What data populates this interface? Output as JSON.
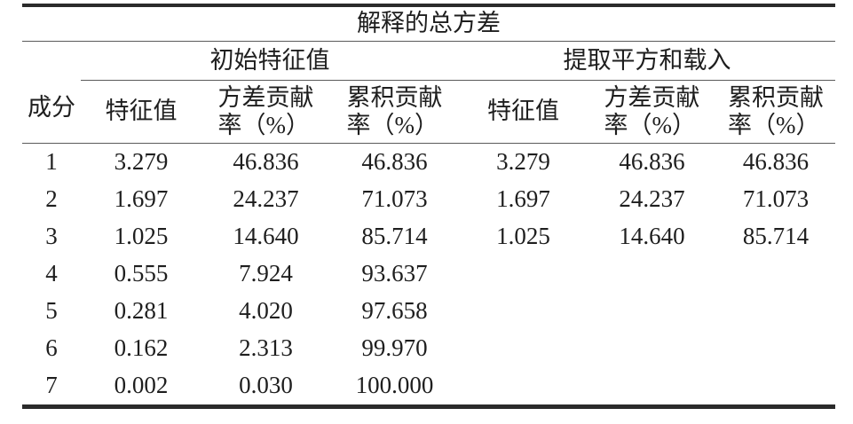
{
  "table": {
    "title": "解释的总方差",
    "component_col": "成分",
    "groups": [
      {
        "label": "初始特征值"
      },
      {
        "label": "提取平方和载入"
      }
    ],
    "sub_headers": {
      "eigenvalue": "特征值",
      "variance_line1": "方差贡献",
      "variance_line2": "率（%）",
      "cumulative_line1": "累积贡献",
      "cumulative_line2": "率（%）"
    },
    "rows": [
      {
        "component": "1",
        "initial": [
          "3.279",
          "46.836",
          "46.836"
        ],
        "extraction": [
          "3.279",
          "46.836",
          "46.836"
        ]
      },
      {
        "component": "2",
        "initial": [
          "1.697",
          "24.237",
          "71.073"
        ],
        "extraction": [
          "1.697",
          "24.237",
          "71.073"
        ]
      },
      {
        "component": "3",
        "initial": [
          "1.025",
          "14.640",
          "85.714"
        ],
        "extraction": [
          "1.025",
          "14.640",
          "85.714"
        ]
      },
      {
        "component": "4",
        "initial": [
          "0.555",
          "7.924",
          "93.637"
        ],
        "extraction": [
          "",
          "",
          ""
        ]
      },
      {
        "component": "5",
        "initial": [
          "0.281",
          "4.020",
          "97.658"
        ],
        "extraction": [
          "",
          "",
          ""
        ]
      },
      {
        "component": "6",
        "initial": [
          "0.162",
          "2.313",
          "99.970"
        ],
        "extraction": [
          "",
          "",
          ""
        ]
      },
      {
        "component": "7",
        "initial": [
          "0.002",
          "0.030",
          "100.000"
        ],
        "extraction": [
          "",
          "",
          ""
        ]
      }
    ],
    "colors": {
      "thick_rule": "#2b2b2b",
      "thin_rule": "#5a5a5a",
      "text": "#1e1e1e",
      "background": "#ffffff"
    }
  }
}
